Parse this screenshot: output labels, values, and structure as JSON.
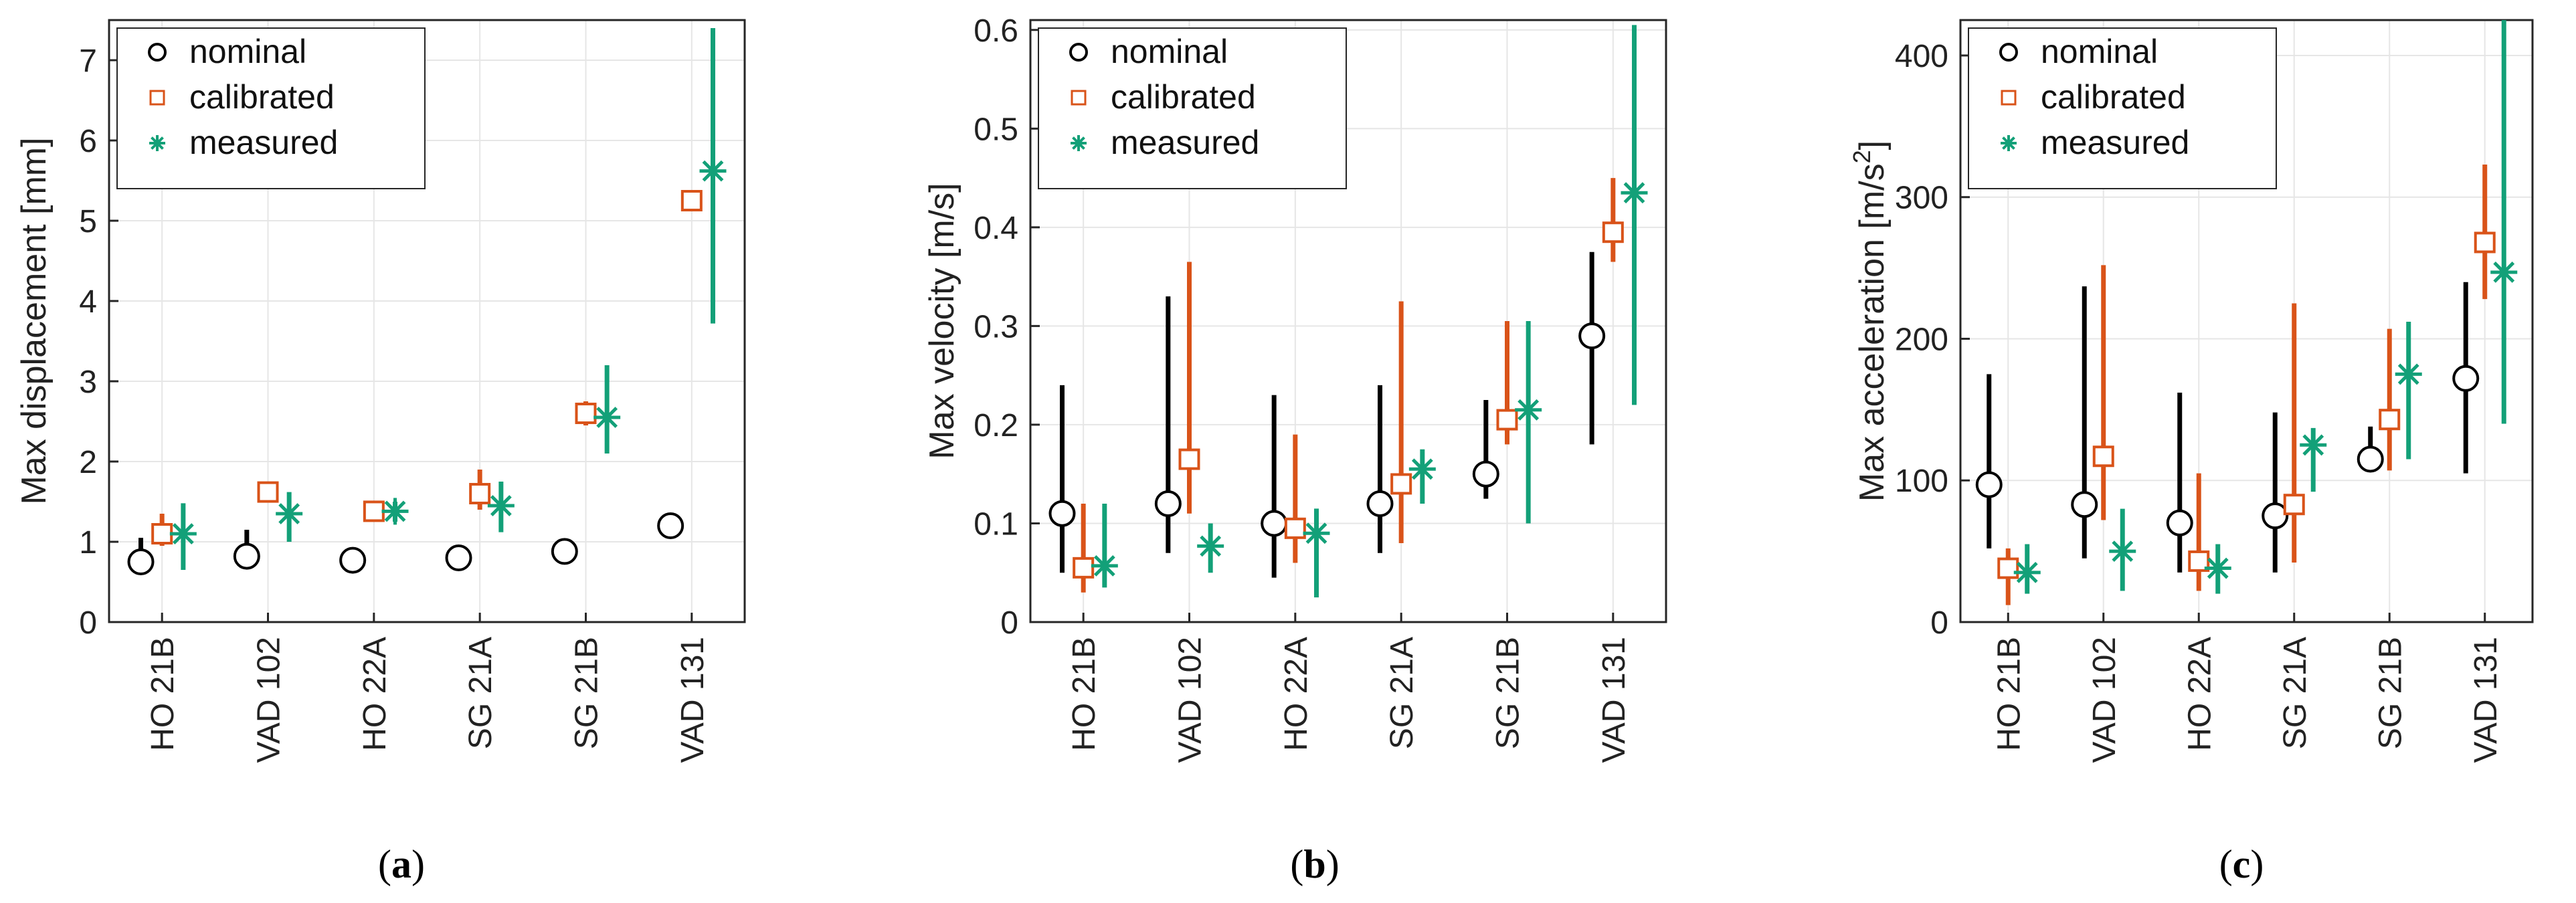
{
  "colors": {
    "nominal": "#000000",
    "calibrated": "#D95319",
    "measured": "#13A078",
    "grid": "#E6E6E6",
    "axis": "#262626"
  },
  "chart_data": [
    {
      "type": "scatter",
      "panel_label_prefix": "(",
      "panel_label": "a",
      "panel_label_suffix": ")",
      "ylabel": "Max displacement [mm]",
      "ylim": [
        0,
        7.5
      ],
      "yticks": [
        0,
        1,
        2,
        3,
        4,
        5,
        6,
        7
      ],
      "ytick_labels": [
        "0",
        "1",
        "2",
        "3",
        "4",
        "5",
        "6",
        "7"
      ],
      "categories": [
        "HO 21B",
        "VAD 102",
        "HO 22A",
        "SG 21A",
        "SG 21B",
        "VAD 131"
      ],
      "legend": [
        "nominal",
        "calibrated",
        "measured"
      ],
      "series": [
        {
          "name": "nominal",
          "values": [
            0.75,
            0.82,
            0.77,
            0.8,
            0.88,
            1.2
          ],
          "low": [
            0.65,
            0.72,
            0.7,
            0.72,
            0.8,
            1.12
          ],
          "high": [
            1.05,
            1.15,
            0.85,
            0.88,
            1.02,
            1.3
          ]
        },
        {
          "name": "calibrated",
          "values": [
            1.1,
            1.62,
            1.38,
            1.6,
            2.6,
            5.25
          ],
          "low": [
            0.95,
            1.5,
            1.25,
            1.4,
            2.45,
            5.15
          ],
          "high": [
            1.35,
            1.75,
            1.5,
            1.9,
            2.75,
            5.35
          ]
        },
        {
          "name": "measured",
          "values": [
            1.1,
            1.35,
            1.38,
            1.45,
            2.55,
            5.62
          ],
          "low": [
            0.65,
            1.0,
            1.25,
            1.12,
            2.1,
            3.72
          ],
          "high": [
            1.48,
            1.62,
            1.5,
            1.75,
            3.2,
            7.4
          ]
        }
      ]
    },
    {
      "type": "scatter",
      "panel_label_prefix": "(",
      "panel_label": "b",
      "panel_label_suffix": ")",
      "ylabel": "Max velocity [m/s]",
      "ylim": [
        0,
        0.61
      ],
      "yticks": [
        0,
        0.1,
        0.2,
        0.3,
        0.4,
        0.5,
        0.6
      ],
      "ytick_labels": [
        "0",
        "0.1",
        "0.2",
        "0.3",
        "0.4",
        "0.5",
        "0.6"
      ],
      "categories": [
        "HO 21B",
        "VAD 102",
        "HO 22A",
        "SG 21A",
        "SG 21B",
        "VAD 131"
      ],
      "legend": [
        "nominal",
        "calibrated",
        "measured"
      ],
      "series": [
        {
          "name": "nominal",
          "values": [
            0.11,
            0.12,
            0.1,
            0.12,
            0.15,
            0.29
          ],
          "low": [
            0.05,
            0.07,
            0.045,
            0.07,
            0.125,
            0.18
          ],
          "high": [
            0.24,
            0.33,
            0.23,
            0.24,
            0.225,
            0.375
          ]
        },
        {
          "name": "calibrated",
          "values": [
            0.055,
            0.165,
            0.095,
            0.14,
            0.205,
            0.395
          ],
          "low": [
            0.03,
            0.11,
            0.06,
            0.08,
            0.18,
            0.365
          ],
          "high": [
            0.12,
            0.365,
            0.19,
            0.325,
            0.305,
            0.45
          ]
        },
        {
          "name": "measured",
          "values": [
            0.057,
            0.077,
            0.09,
            0.155,
            0.215,
            0.435
          ],
          "low": [
            0.035,
            0.05,
            0.025,
            0.12,
            0.1,
            0.22
          ],
          "high": [
            0.12,
            0.1,
            0.115,
            0.175,
            0.305,
            0.605
          ]
        }
      ]
    },
    {
      "type": "scatter",
      "panel_label_prefix": "(",
      "panel_label": "c",
      "panel_label_suffix": ")",
      "ylabel": "Max acceleration [m/s",
      "ylabel_sup": "2",
      "ylabel_end": "]",
      "ylim": [
        0,
        425
      ],
      "yticks": [
        0,
        100,
        200,
        300,
        400
      ],
      "ytick_labels": [
        "0",
        "100",
        "200",
        "300",
        "400"
      ],
      "categories": [
        "HO 21B",
        "VAD 102",
        "HO 22A",
        "SG 21A",
        "SG 21B",
        "VAD 131"
      ],
      "legend": [
        "nominal",
        "calibrated",
        "measured"
      ],
      "series": [
        {
          "name": "nominal",
          "values": [
            97,
            83,
            70,
            75,
            115,
            172
          ],
          "low": [
            52,
            45,
            35,
            35,
            107,
            105
          ],
          "high": [
            175,
            237,
            162,
            148,
            138,
            240
          ]
        },
        {
          "name": "calibrated",
          "values": [
            38,
            117,
            43,
            83,
            143,
            268
          ],
          "low": [
            12,
            72,
            22,
            42,
            107,
            228
          ],
          "high": [
            52,
            252,
            105,
            225,
            207,
            323
          ]
        },
        {
          "name": "measured",
          "values": [
            35,
            50,
            38,
            125,
            175,
            247
          ],
          "low": [
            20,
            22,
            20,
            92,
            115,
            140
          ],
          "high": [
            55,
            80,
            55,
            137,
            212,
            425
          ]
        }
      ]
    }
  ]
}
